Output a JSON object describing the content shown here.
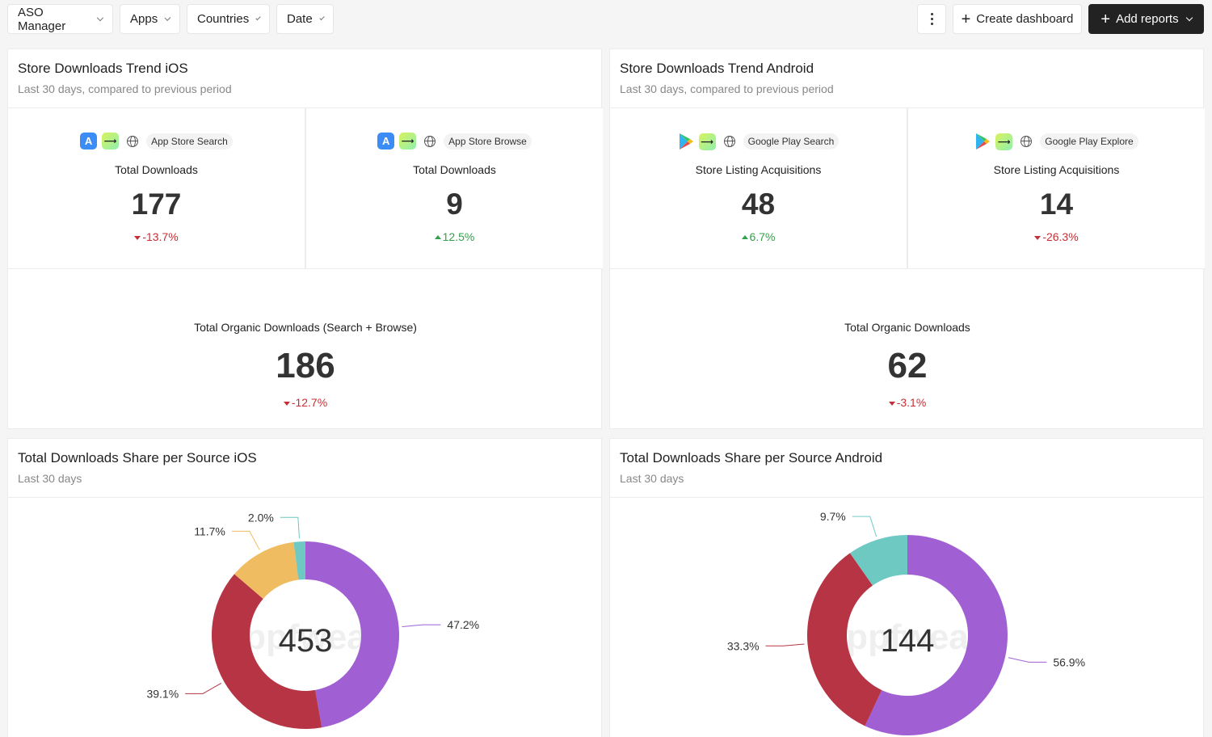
{
  "toolbar": {
    "filters": [
      "ASO Manager",
      "Apps",
      "Countries",
      "Date"
    ],
    "create_label": "Create dashboard",
    "add_label": "Add reports"
  },
  "ios_trend": {
    "title": "Store Downloads Trend iOS",
    "subtitle": "Last 30 days, compared to previous period",
    "metrics": [
      {
        "source": "App Store Search",
        "label": "Total Downloads",
        "value": "177",
        "delta": "-13.7%",
        "direction": "down"
      },
      {
        "source": "App Store Browse",
        "label": "Total Downloads",
        "value": "9",
        "delta": "12.5%",
        "direction": "up"
      }
    ],
    "total": {
      "label": "Total Organic Downloads (Search + Browse)",
      "value": "186",
      "delta": "-12.7%",
      "direction": "down"
    }
  },
  "android_trend": {
    "title": "Store Downloads Trend Android",
    "subtitle": "Last 30 days, compared to previous period",
    "metrics": [
      {
        "source": "Google Play Search",
        "label": "Store Listing Acquisitions",
        "value": "48",
        "delta": "6.7%",
        "direction": "up"
      },
      {
        "source": "Google Play Explore",
        "label": "Store Listing Acquisitions",
        "value": "14",
        "delta": "-26.3%",
        "direction": "down"
      }
    ],
    "total": {
      "label": "Total Organic Downloads",
      "value": "62",
      "delta": "-3.1%",
      "direction": "down"
    }
  },
  "ios_share": {
    "title": "Total Downloads Share per Source iOS",
    "subtitle": "Last 30 days"
  },
  "android_share": {
    "title": "Total Downloads Share per Source Android",
    "subtitle": "Last 30 days"
  },
  "watermark": "appfweak",
  "colors": {
    "purple": "#a05fd3",
    "red": "#b73444",
    "yellow": "#f0bc62",
    "teal": "#6fc9c3"
  },
  "chart_data": [
    {
      "type": "pie",
      "center_value": "453",
      "slices": [
        {
          "value": 47.2,
          "label": "47.2%",
          "color": "#a05fd3"
        },
        {
          "value": 39.1,
          "label": "39.1%",
          "color": "#b73444"
        },
        {
          "value": 11.7,
          "label": "11.7%",
          "color": "#f0bc62"
        },
        {
          "value": 2.0,
          "label": "2.0%",
          "color": "#6fc9c3"
        }
      ]
    },
    {
      "type": "pie",
      "center_value": "144",
      "slices": [
        {
          "value": 56.9,
          "label": "56.9%",
          "color": "#a05fd3"
        },
        {
          "value": 33.3,
          "label": "33.3%",
          "color": "#b73444"
        },
        {
          "value": 9.7,
          "label": "9.7%",
          "color": "#6fc9c3"
        }
      ]
    }
  ]
}
